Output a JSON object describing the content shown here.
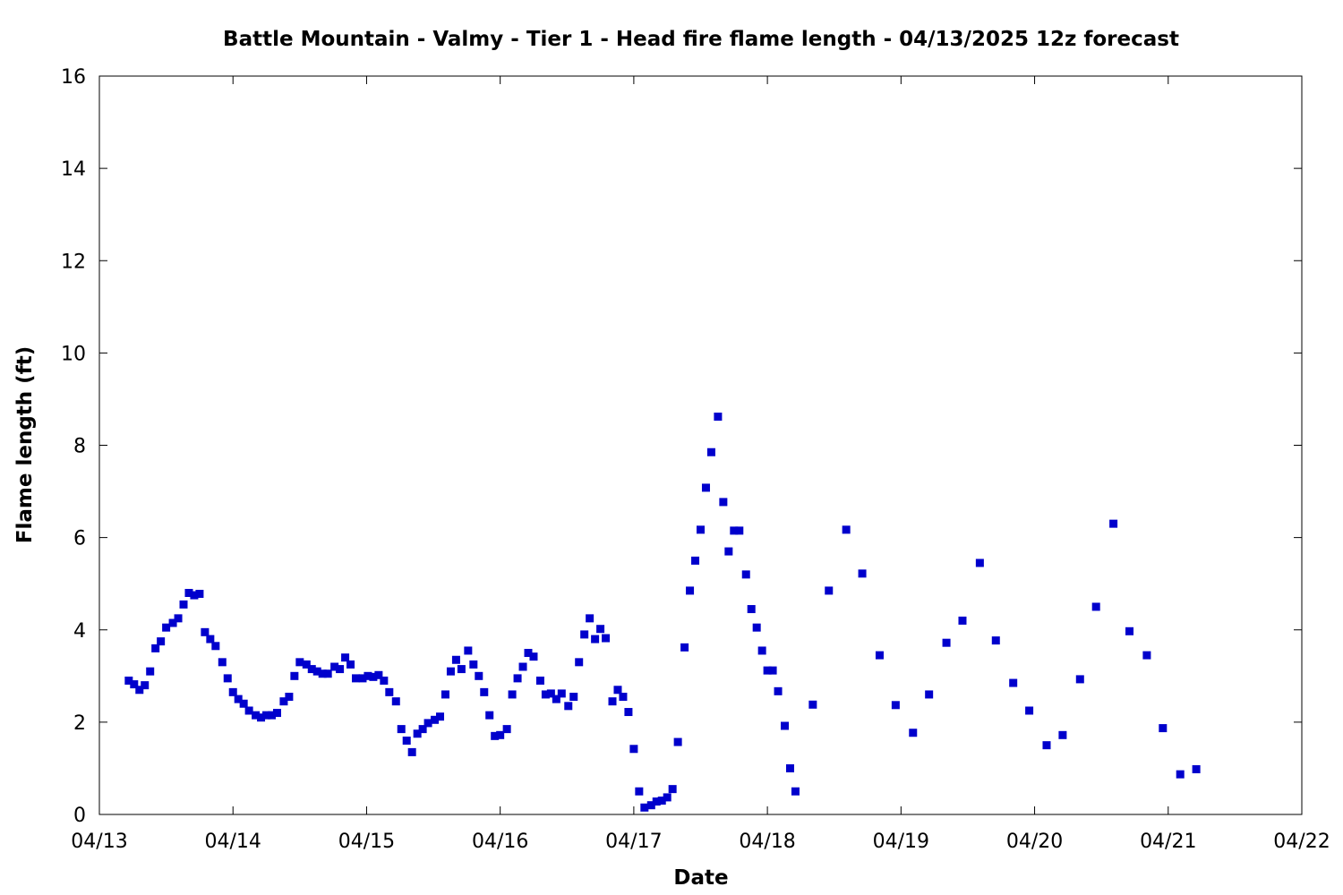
{
  "chart_data": {
    "type": "scatter",
    "title": "Battle Mountain - Valmy - Tier 1 - Head fire flame length - 04/13/2025 12z forecast",
    "xlabel": "Date",
    "ylabel": "Flame length (ft)",
    "xlim": [
      0,
      9
    ],
    "ylim": [
      0,
      16
    ],
    "x_ticks": [
      {
        "value": 0,
        "label": "04/13"
      },
      {
        "value": 1,
        "label": "04/14"
      },
      {
        "value": 2,
        "label": "04/15"
      },
      {
        "value": 3,
        "label": "04/16"
      },
      {
        "value": 4,
        "label": "04/17"
      },
      {
        "value": 5,
        "label": "04/18"
      },
      {
        "value": 6,
        "label": "04/19"
      },
      {
        "value": 7,
        "label": "04/20"
      },
      {
        "value": 8,
        "label": "04/21"
      },
      {
        "value": 9,
        "label": "04/22"
      }
    ],
    "y_ticks": [
      0,
      2,
      4,
      6,
      8,
      10,
      12,
      14,
      16
    ],
    "grid": false,
    "marker_color": "#0000CC",
    "x_unit": "days since 04/13 00z",
    "series": [
      {
        "name": "Head fire flame length",
        "points": [
          [
            0.22,
            2.9
          ],
          [
            0.26,
            2.82
          ],
          [
            0.3,
            2.7
          ],
          [
            0.34,
            2.8
          ],
          [
            0.38,
            3.1
          ],
          [
            0.42,
            3.6
          ],
          [
            0.46,
            3.75
          ],
          [
            0.5,
            4.05
          ],
          [
            0.55,
            4.15
          ],
          [
            0.59,
            4.25
          ],
          [
            0.63,
            4.55
          ],
          [
            0.67,
            4.8
          ],
          [
            0.71,
            4.75
          ],
          [
            0.75,
            4.78
          ],
          [
            0.79,
            3.95
          ],
          [
            0.83,
            3.8
          ],
          [
            0.87,
            3.65
          ],
          [
            0.92,
            3.3
          ],
          [
            0.96,
            2.95
          ],
          [
            1.0,
            2.65
          ],
          [
            1.04,
            2.5
          ],
          [
            1.08,
            2.4
          ],
          [
            1.12,
            2.25
          ],
          [
            1.17,
            2.15
          ],
          [
            1.21,
            2.1
          ],
          [
            1.25,
            2.15
          ],
          [
            1.29,
            2.15
          ],
          [
            1.33,
            2.2
          ],
          [
            1.38,
            2.45
          ],
          [
            1.42,
            2.55
          ],
          [
            1.46,
            3.0
          ],
          [
            1.5,
            3.3
          ],
          [
            1.55,
            3.25
          ],
          [
            1.59,
            3.15
          ],
          [
            1.63,
            3.1
          ],
          [
            1.67,
            3.05
          ],
          [
            1.71,
            3.05
          ],
          [
            1.76,
            3.2
          ],
          [
            1.8,
            3.15
          ],
          [
            1.84,
            3.4
          ],
          [
            1.88,
            3.25
          ],
          [
            1.92,
            2.95
          ],
          [
            1.97,
            2.95
          ],
          [
            2.01,
            3.0
          ],
          [
            2.05,
            2.98
          ],
          [
            2.09,
            3.02
          ],
          [
            2.13,
            2.9
          ],
          [
            2.17,
            2.65
          ],
          [
            2.22,
            2.45
          ],
          [
            2.26,
            1.85
          ],
          [
            2.3,
            1.6
          ],
          [
            2.34,
            1.35
          ],
          [
            2.38,
            1.75
          ],
          [
            2.42,
            1.85
          ],
          [
            2.46,
            1.98
          ],
          [
            2.51,
            2.05
          ],
          [
            2.55,
            2.12
          ],
          [
            2.59,
            2.6
          ],
          [
            2.63,
            3.1
          ],
          [
            2.67,
            3.35
          ],
          [
            2.71,
            3.15
          ],
          [
            2.76,
            3.55
          ],
          [
            2.8,
            3.25
          ],
          [
            2.84,
            3.0
          ],
          [
            2.88,
            2.65
          ],
          [
            2.92,
            2.15
          ],
          [
            2.96,
            1.7
          ],
          [
            3.0,
            1.72
          ],
          [
            3.05,
            1.85
          ],
          [
            3.09,
            2.6
          ],
          [
            3.13,
            2.95
          ],
          [
            3.17,
            3.2
          ],
          [
            3.21,
            3.5
          ],
          [
            3.25,
            3.42
          ],
          [
            3.3,
            2.9
          ],
          [
            3.34,
            2.6
          ],
          [
            3.38,
            2.62
          ],
          [
            3.42,
            2.5
          ],
          [
            3.46,
            2.62
          ],
          [
            3.51,
            2.35
          ],
          [
            3.55,
            2.55
          ],
          [
            3.59,
            3.3
          ],
          [
            3.63,
            3.9
          ],
          [
            3.67,
            4.25
          ],
          [
            3.71,
            3.8
          ],
          [
            3.75,
            4.02
          ],
          [
            3.79,
            3.82
          ],
          [
            3.84,
            2.45
          ],
          [
            3.88,
            2.7
          ],
          [
            3.92,
            2.55
          ],
          [
            3.96,
            2.22
          ],
          [
            4.0,
            1.42
          ],
          [
            4.04,
            0.5
          ],
          [
            4.08,
            0.15
          ],
          [
            4.13,
            0.2
          ],
          [
            4.17,
            0.28
          ],
          [
            4.21,
            0.3
          ],
          [
            4.25,
            0.37
          ],
          [
            4.29,
            0.55
          ],
          [
            4.33,
            1.57
          ],
          [
            4.38,
            3.62
          ],
          [
            4.42,
            4.85
          ],
          [
            4.46,
            5.5
          ],
          [
            4.5,
            6.17
          ],
          [
            4.54,
            7.08
          ],
          [
            4.58,
            7.85
          ],
          [
            4.63,
            8.62
          ],
          [
            4.67,
            6.77
          ],
          [
            4.71,
            5.7
          ],
          [
            4.75,
            6.15
          ],
          [
            4.79,
            6.15
          ],
          [
            4.84,
            5.2
          ],
          [
            4.88,
            4.45
          ],
          [
            4.92,
            4.05
          ],
          [
            4.96,
            3.55
          ],
          [
            5.0,
            3.12
          ],
          [
            5.04,
            3.12
          ],
          [
            5.08,
            2.67
          ],
          [
            5.13,
            1.92
          ],
          [
            5.17,
            1.0
          ],
          [
            5.21,
            0.5
          ],
          [
            5.34,
            2.38
          ],
          [
            5.46,
            4.85
          ],
          [
            5.59,
            6.17
          ],
          [
            5.71,
            5.22
          ],
          [
            5.84,
            3.45
          ],
          [
            5.96,
            2.37
          ],
          [
            6.09,
            1.77
          ],
          [
            6.21,
            2.6
          ],
          [
            6.34,
            3.72
          ],
          [
            6.46,
            4.2
          ],
          [
            6.59,
            5.45
          ],
          [
            6.71,
            3.77
          ],
          [
            6.84,
            2.85
          ],
          [
            6.96,
            2.25
          ],
          [
            7.09,
            1.5
          ],
          [
            7.21,
            1.72
          ],
          [
            7.34,
            2.93
          ],
          [
            7.46,
            4.5
          ],
          [
            7.59,
            6.3
          ],
          [
            7.71,
            3.97
          ],
          [
            7.84,
            3.45
          ],
          [
            7.96,
            1.87
          ],
          [
            8.09,
            0.87
          ],
          [
            8.21,
            0.98
          ]
        ]
      }
    ]
  }
}
